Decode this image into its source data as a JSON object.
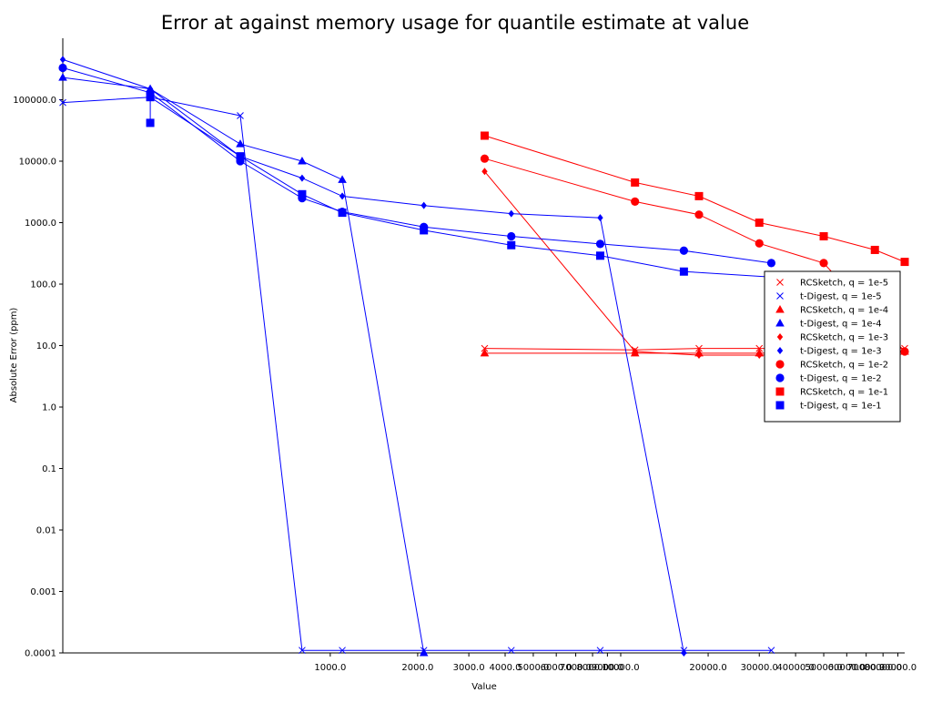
{
  "chart_data": {
    "type": "line",
    "title": "Error at against memory usage for quantile estimate at value",
    "xlabel": "Value",
    "ylabel": "Absolute Error (ppm)",
    "xscale": "log",
    "yscale": "log",
    "xlim": [
      120,
      95000
    ],
    "ylim": [
      0.0001,
      1000000
    ],
    "x_ticks": [
      1000,
      2000,
      3000,
      4000,
      5000,
      6000,
      7000,
      8000,
      9000,
      10000,
      20000,
      30000,
      40000,
      50000,
      60000,
      70000,
      80000,
      90000
    ],
    "x_tick_labels": [
      "1000.0",
      "2000.0",
      "3000.0",
      "4000.0",
      "5000.0",
      "6000.0",
      "7000.0",
      "8000.0",
      "9000.0",
      "10000.0",
      "20000.0",
      "30000.0",
      "40000.0",
      "50000.0",
      "60000.0",
      "70000.0",
      "80000.0",
      "90000.0"
    ],
    "y_ticks": [
      0.0001,
      0.001,
      0.01,
      0.1,
      1,
      10,
      100,
      1000,
      10000,
      100000
    ],
    "y_tick_labels": [
      "0.0001",
      "0.001",
      "0.01",
      "0.1",
      "1.0",
      "10.0",
      "100.0",
      "1000.0",
      "10000.0",
      "100000.0"
    ],
    "grid": false,
    "legend_position": "right",
    "colors": {
      "rcsketch": "#ff0000",
      "tdigest": "#0000ff"
    },
    "series": [
      {
        "name": "RCSketch, q = 1e-5",
        "color": "#ff0000",
        "marker": "x",
        "x": [
          3400,
          11200,
          18600,
          30000,
          95000
        ],
        "y": [
          9,
          8.5,
          9,
          9,
          9
        ]
      },
      {
        "name": "t-Digest, q = 1e-5",
        "color": "#0000ff",
        "marker": "x",
        "x": [
          120,
          240,
          490,
          800,
          1100,
          2100,
          4200,
          8500,
          16500,
          33000
        ],
        "y": [
          90000,
          110000,
          55000,
          0.00011,
          0.00011,
          0.00011,
          0.00011,
          0.00011,
          0.00011,
          0.00011
        ]
      },
      {
        "name": "RCSketch, q = 1e-4",
        "color": "#ff0000",
        "marker": "^",
        "x": [
          3400,
          11200,
          18600,
          30000,
          95000
        ],
        "y": [
          7.5,
          7.5,
          7.5,
          7.5,
          8
        ]
      },
      {
        "name": "t-Digest, q = 1e-4",
        "color": "#0000ff",
        "marker": "^",
        "x": [
          120,
          240,
          490,
          800,
          1100,
          2100
        ],
        "y": [
          230000,
          150000,
          19000,
          10000,
          5000,
          0.0001
        ]
      },
      {
        "name": "RCSketch, q = 1e-3",
        "color": "#ff0000",
        "marker": "D",
        "x": [
          3400,
          11200,
          18600,
          30000,
          95000
        ],
        "y": [
          6800,
          8,
          7,
          7,
          8
        ]
      },
      {
        "name": "t-Digest, q = 1e-3",
        "color": "#0000ff",
        "marker": "D",
        "x": [
          120,
          240,
          490,
          800,
          1100,
          2100,
          4200,
          8500,
          16500
        ],
        "y": [
          450000,
          150000,
          12000,
          5300,
          2700,
          1900,
          1400,
          1200,
          0.0001
        ]
      },
      {
        "name": "RCSketch, q = 1e-2",
        "color": "#ff0000",
        "marker": "o",
        "x": [
          3400,
          11200,
          18600,
          30000,
          50000,
          95000
        ],
        "y": [
          11000,
          2200,
          1350,
          460,
          220,
          8
        ]
      },
      {
        "name": "t-Digest, q = 1e-2",
        "color": "#0000ff",
        "marker": "o",
        "x": [
          120,
          240,
          490,
          800,
          1100,
          2100,
          4200,
          8500,
          16500,
          33000
        ],
        "y": [
          330000,
          130000,
          10000,
          2500,
          1500,
          850,
          600,
          450,
          350,
          220
        ]
      },
      {
        "name": "RCSketch, q = 1e-1",
        "color": "#ff0000",
        "marker": "s",
        "x": [
          3400,
          11200,
          18600,
          30000,
          50000,
          75000,
          95000
        ],
        "y": [
          26000,
          4500,
          2700,
          1000,
          600,
          360,
          230
        ]
      },
      {
        "name": "t-Digest, q = 1e-1",
        "color": "#0000ff",
        "marker": "s",
        "x": [
          240,
          240,
          490,
          800,
          1100,
          2100,
          4200,
          8500,
          16500,
          33000
        ],
        "y": [
          42000,
          110000,
          12000,
          2900,
          1450,
          750,
          430,
          290,
          160,
          130
        ]
      }
    ]
  }
}
